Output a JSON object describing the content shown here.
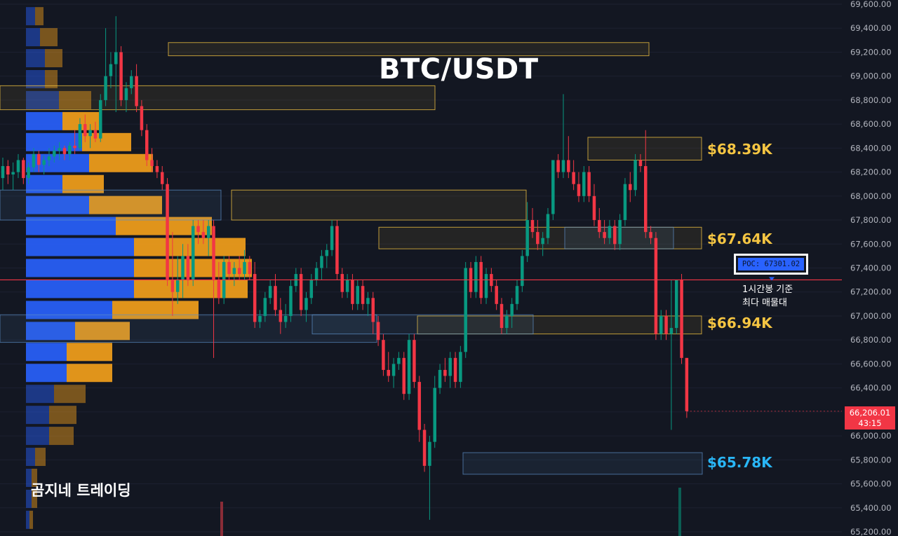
{
  "chart_data": {
    "type": "candlestick",
    "title": "BTC/USDT",
    "watermark": "곰지네 트레이딩",
    "ylim": [
      65200,
      69600
    ],
    "y_ticks": [
      "69,600.00",
      "69,400.00",
      "69,200.00",
      "69,000.00",
      "68,800.00",
      "68,600.00",
      "68,400.00",
      "68,200.00",
      "68,000.00",
      "67,800.00",
      "67,600.00",
      "67,400.00",
      "67,200.00",
      "67,000.00",
      "66,800.00",
      "66,600.00",
      "66,400.00",
      "66,200.00",
      "66,000.00",
      "65,800.00",
      "65,600.00",
      "65,400.00",
      "65,200.00"
    ],
    "levels": [
      {
        "label": "$68.39K",
        "value": 68390,
        "color": "#f5c542"
      },
      {
        "label": "$67.64K",
        "value": 67640,
        "color": "#f5c542"
      },
      {
        "label": "$66.94K",
        "value": 66940,
        "color": "#f5c542"
      },
      {
        "label": "$65.78K",
        "value": 65780,
        "color": "#29b6f6"
      }
    ],
    "poc": {
      "label": "POC: 67301.02",
      "value": 67301.02,
      "note_line1": "1시간봉 기준",
      "note_line2": "최다 매물대"
    },
    "last_price": {
      "label": "66,206.01",
      "value": 66206.01,
      "countdown": "43:15"
    },
    "colors": {
      "up": "#089981",
      "down": "#f23645",
      "profile_buy": "#2962ff",
      "profile_sell": "#f7a21b",
      "poc_line": "#f23645",
      "zone_yellow": "#f5c542",
      "zone_blue": "#5d8fc7"
    },
    "volume_profile": [
      {
        "price": 69500,
        "buy": 0.13,
        "sell": 0.12
      },
      {
        "price": 69325,
        "buy": 0.2,
        "sell": 0.25
      },
      {
        "price": 69150,
        "buy": 0.27,
        "sell": 0.25
      },
      {
        "price": 68975,
        "buy": 0.27,
        "sell": 0.18
      },
      {
        "price": 68800,
        "buy": 0.47,
        "sell": 0.46
      },
      {
        "price": 68625,
        "buy": 0.52,
        "sell": 0.53
      },
      {
        "price": 68450,
        "buy": 0.8,
        "sell": 0.7
      },
      {
        "price": 68275,
        "buy": 0.9,
        "sell": 0.91
      },
      {
        "price": 68100,
        "buy": 0.52,
        "sell": 0.59
      },
      {
        "price": 67925,
        "buy": 0.9,
        "sell": 1.04
      },
      {
        "price": 67750,
        "buy": 1.28,
        "sell": 1.37
      },
      {
        "price": 67575,
        "buy": 1.54,
        "sell": 1.59
      },
      {
        "price": 67400,
        "buy": 1.54,
        "sell": 1.68
      },
      {
        "price": 67225,
        "buy": 1.54,
        "sell": 1.62
      },
      {
        "price": 67050,
        "buy": 1.23,
        "sell": 1.23
      },
      {
        "price": 66875,
        "buy": 0.7,
        "sell": 0.78
      },
      {
        "price": 66700,
        "buy": 0.58,
        "sell": 0.65
      },
      {
        "price": 66525,
        "buy": 0.58,
        "sell": 0.65
      },
      {
        "price": 66350,
        "buy": 0.4,
        "sell": 0.45
      },
      {
        "price": 66175,
        "buy": 0.33,
        "sell": 0.39
      },
      {
        "price": 66000,
        "buy": 0.33,
        "sell": 0.35
      },
      {
        "price": 65825,
        "buy": 0.13,
        "sell": 0.15
      },
      {
        "price": 65650,
        "buy": 0.08,
        "sell": 0.08
      },
      {
        "price": 65475,
        "buy": 0.08,
        "sell": 0.08
      },
      {
        "price": 65300,
        "buy": 0.05,
        "sell": 0.05
      }
    ],
    "zones": [
      {
        "low": 69170,
        "high": 69280,
        "color": "yellow"
      },
      {
        "low": 68720,
        "high": 68920,
        "color": "yellow"
      },
      {
        "low": 67800,
        "high": 68050,
        "color": "yellow"
      },
      {
        "low": 67800,
        "high": 68050,
        "color": "blue"
      },
      {
        "low": 67560,
        "high": 67740,
        "color": "yellow"
      },
      {
        "low": 67560,
        "high": 67740,
        "color": "blue"
      },
      {
        "low": 66850,
        "high": 67000,
        "color": "yellow"
      },
      {
        "low": 66780,
        "high": 67010,
        "color": "blue"
      },
      {
        "low": 66850,
        "high": 67010,
        "color": "blue"
      },
      {
        "low": 68300,
        "high": 68490,
        "color": "yellow"
      },
      {
        "low": 65680,
        "high": 65860,
        "color": "blue"
      }
    ],
    "candles": [
      {
        "o": 68150,
        "h": 68320,
        "l": 68050,
        "c": 68250
      },
      {
        "o": 68250,
        "h": 68300,
        "l": 68100,
        "c": 68180
      },
      {
        "o": 68180,
        "h": 68280,
        "l": 68050,
        "c": 68200
      },
      {
        "o": 68200,
        "h": 68350,
        "l": 68150,
        "c": 68300
      },
      {
        "o": 68300,
        "h": 68320,
        "l": 68100,
        "c": 68150
      },
      {
        "o": 68150,
        "h": 68280,
        "l": 68100,
        "c": 68240
      },
      {
        "o": 68240,
        "h": 68400,
        "l": 68200,
        "c": 68350
      },
      {
        "o": 68350,
        "h": 68380,
        "l": 68200,
        "c": 68260
      },
      {
        "o": 68260,
        "h": 68340,
        "l": 68180,
        "c": 68300
      },
      {
        "o": 68300,
        "h": 68400,
        "l": 68250,
        "c": 68330
      },
      {
        "o": 68330,
        "h": 68420,
        "l": 68280,
        "c": 68380
      },
      {
        "o": 68380,
        "h": 68450,
        "l": 68300,
        "c": 68400
      },
      {
        "o": 68400,
        "h": 68420,
        "l": 68300,
        "c": 68350
      },
      {
        "o": 68350,
        "h": 68450,
        "l": 68300,
        "c": 68420
      },
      {
        "o": 68420,
        "h": 68550,
        "l": 68350,
        "c": 68400
      },
      {
        "o": 68400,
        "h": 68650,
        "l": 68380,
        "c": 68600
      },
      {
        "o": 68600,
        "h": 68680,
        "l": 68450,
        "c": 68500
      },
      {
        "o": 68500,
        "h": 68600,
        "l": 68400,
        "c": 68550
      },
      {
        "o": 68550,
        "h": 68620,
        "l": 68450,
        "c": 68480
      },
      {
        "o": 68480,
        "h": 68850,
        "l": 68450,
        "c": 68800
      },
      {
        "o": 68800,
        "h": 69400,
        "l": 68750,
        "c": 69000
      },
      {
        "o": 69000,
        "h": 69200,
        "l": 68900,
        "c": 69100
      },
      {
        "o": 69100,
        "h": 69500,
        "l": 68700,
        "c": 69200
      },
      {
        "o": 69200,
        "h": 69250,
        "l": 68750,
        "c": 68800
      },
      {
        "o": 68800,
        "h": 68950,
        "l": 68700,
        "c": 68900
      },
      {
        "o": 68900,
        "h": 69050,
        "l": 68850,
        "c": 69000
      },
      {
        "o": 69000,
        "h": 69100,
        "l": 68700,
        "c": 68750
      },
      {
        "o": 68750,
        "h": 68800,
        "l": 68500,
        "c": 68550
      },
      {
        "o": 68550,
        "h": 68600,
        "l": 68250,
        "c": 68300
      },
      {
        "o": 68300,
        "h": 68400,
        "l": 68200,
        "c": 68250
      },
      {
        "o": 68250,
        "h": 68300,
        "l": 68150,
        "c": 68200
      },
      {
        "o": 68200,
        "h": 68250,
        "l": 68050,
        "c": 68100
      },
      {
        "o": 68100,
        "h": 68150,
        "l": 67250,
        "c": 67300
      },
      {
        "o": 67300,
        "h": 67700,
        "l": 67000,
        "c": 67200
      },
      {
        "o": 67200,
        "h": 67500,
        "l": 67100,
        "c": 67300
      },
      {
        "o": 67300,
        "h": 67600,
        "l": 67150,
        "c": 67500
      },
      {
        "o": 67500,
        "h": 67600,
        "l": 67250,
        "c": 67300
      },
      {
        "o": 67300,
        "h": 67800,
        "l": 67250,
        "c": 67750
      },
      {
        "o": 67750,
        "h": 67800,
        "l": 67600,
        "c": 67700
      },
      {
        "o": 67700,
        "h": 67800,
        "l": 67600,
        "c": 67650
      },
      {
        "o": 67650,
        "h": 67800,
        "l": 67500,
        "c": 67750
      },
      {
        "o": 67750,
        "h": 67800,
        "l": 66650,
        "c": 67300
      },
      {
        "o": 67300,
        "h": 67450,
        "l": 67100,
        "c": 67150
      },
      {
        "o": 67150,
        "h": 67500,
        "l": 67100,
        "c": 67450
      },
      {
        "o": 67450,
        "h": 67500,
        "l": 67300,
        "c": 67350
      },
      {
        "o": 67350,
        "h": 67450,
        "l": 67250,
        "c": 67400
      },
      {
        "o": 67400,
        "h": 67500,
        "l": 67300,
        "c": 67350
      },
      {
        "o": 67350,
        "h": 67550,
        "l": 67300,
        "c": 67450
      },
      {
        "o": 67450,
        "h": 67500,
        "l": 67300,
        "c": 67350
      },
      {
        "o": 67350,
        "h": 67450,
        "l": 66900,
        "c": 66950
      },
      {
        "o": 66950,
        "h": 67050,
        "l": 66900,
        "c": 67000
      },
      {
        "o": 67000,
        "h": 67200,
        "l": 66950,
        "c": 67150
      },
      {
        "o": 67150,
        "h": 67300,
        "l": 67100,
        "c": 67250
      },
      {
        "o": 67250,
        "h": 67350,
        "l": 67000,
        "c": 67050
      },
      {
        "o": 67050,
        "h": 67150,
        "l": 66850,
        "c": 66950
      },
      {
        "o": 66950,
        "h": 67100,
        "l": 66900,
        "c": 67000
      },
      {
        "o": 67000,
        "h": 67300,
        "l": 66950,
        "c": 67250
      },
      {
        "o": 67250,
        "h": 67400,
        "l": 67200,
        "c": 67350
      },
      {
        "o": 67350,
        "h": 67400,
        "l": 67000,
        "c": 67050
      },
      {
        "o": 67050,
        "h": 67200,
        "l": 66950,
        "c": 67150
      },
      {
        "o": 67150,
        "h": 67350,
        "l": 67100,
        "c": 67300
      },
      {
        "o": 67300,
        "h": 67450,
        "l": 67250,
        "c": 67400
      },
      {
        "o": 67400,
        "h": 67550,
        "l": 67300,
        "c": 67500
      },
      {
        "o": 67500,
        "h": 67600,
        "l": 67400,
        "c": 67550
      },
      {
        "o": 67550,
        "h": 67800,
        "l": 67500,
        "c": 67750
      },
      {
        "o": 67750,
        "h": 67800,
        "l": 67300,
        "c": 67350
      },
      {
        "o": 67350,
        "h": 67400,
        "l": 67150,
        "c": 67200
      },
      {
        "o": 67200,
        "h": 67350,
        "l": 67150,
        "c": 67300
      },
      {
        "o": 67300,
        "h": 67350,
        "l": 67050,
        "c": 67100
      },
      {
        "o": 67100,
        "h": 67300,
        "l": 67050,
        "c": 67250
      },
      {
        "o": 67250,
        "h": 67300,
        "l": 67050,
        "c": 67100
      },
      {
        "o": 67100,
        "h": 67200,
        "l": 67000,
        "c": 67150
      },
      {
        "o": 67150,
        "h": 67200,
        "l": 66850,
        "c": 66950
      },
      {
        "o": 66950,
        "h": 67000,
        "l": 66750,
        "c": 66800
      },
      {
        "o": 66800,
        "h": 66850,
        "l": 66500,
        "c": 66550
      },
      {
        "o": 66550,
        "h": 66700,
        "l": 66450,
        "c": 66500
      },
      {
        "o": 66500,
        "h": 66650,
        "l": 66400,
        "c": 66600
      },
      {
        "o": 66600,
        "h": 66700,
        "l": 66550,
        "c": 66650
      },
      {
        "o": 66650,
        "h": 66700,
        "l": 66300,
        "c": 66350
      },
      {
        "o": 66350,
        "h": 66850,
        "l": 66300,
        "c": 66800
      },
      {
        "o": 66800,
        "h": 66850,
        "l": 66400,
        "c": 66450
      },
      {
        "o": 66450,
        "h": 66500,
        "l": 65950,
        "c": 66050
      },
      {
        "o": 66050,
        "h": 66100,
        "l": 65700,
        "c": 65750
      },
      {
        "o": 65750,
        "h": 66000,
        "l": 65300,
        "c": 65950
      },
      {
        "o": 65950,
        "h": 66500,
        "l": 65900,
        "c": 66400
      },
      {
        "o": 66400,
        "h": 66600,
        "l": 66350,
        "c": 66550
      },
      {
        "o": 66550,
        "h": 66650,
        "l": 66450,
        "c": 66500
      },
      {
        "o": 66500,
        "h": 66700,
        "l": 66400,
        "c": 66650
      },
      {
        "o": 66650,
        "h": 66700,
        "l": 66400,
        "c": 66450
      },
      {
        "o": 66450,
        "h": 66750,
        "l": 66400,
        "c": 66700
      },
      {
        "o": 66700,
        "h": 67450,
        "l": 66650,
        "c": 67400
      },
      {
        "o": 67400,
        "h": 67450,
        "l": 67150,
        "c": 67200
      },
      {
        "o": 67200,
        "h": 67500,
        "l": 67150,
        "c": 67450
      },
      {
        "o": 67450,
        "h": 67500,
        "l": 67100,
        "c": 67150
      },
      {
        "o": 67150,
        "h": 67400,
        "l": 67100,
        "c": 67350
      },
      {
        "o": 67350,
        "h": 67400,
        "l": 67200,
        "c": 67250
      },
      {
        "o": 67250,
        "h": 67300,
        "l": 67050,
        "c": 67100
      },
      {
        "o": 67100,
        "h": 67150,
        "l": 66850,
        "c": 66900
      },
      {
        "o": 66900,
        "h": 67050,
        "l": 66850,
        "c": 67000
      },
      {
        "o": 67000,
        "h": 67150,
        "l": 66900,
        "c": 67100
      },
      {
        "o": 67100,
        "h": 67300,
        "l": 67050,
        "c": 67250
      },
      {
        "o": 67250,
        "h": 67550,
        "l": 67200,
        "c": 67500
      },
      {
        "o": 67500,
        "h": 67950,
        "l": 67450,
        "c": 67800
      },
      {
        "o": 67800,
        "h": 67900,
        "l": 67650,
        "c": 67700
      },
      {
        "o": 67700,
        "h": 67800,
        "l": 67550,
        "c": 67600
      },
      {
        "o": 67600,
        "h": 67700,
        "l": 67500,
        "c": 67650
      },
      {
        "o": 67650,
        "h": 67900,
        "l": 67600,
        "c": 67850
      },
      {
        "o": 67850,
        "h": 68300,
        "l": 67800,
        "c": 68300
      },
      {
        "o": 68300,
        "h": 68350,
        "l": 68150,
        "c": 68200
      },
      {
        "o": 68200,
        "h": 68850,
        "l": 68150,
        "c": 68300
      },
      {
        "o": 68300,
        "h": 68500,
        "l": 68150,
        "c": 68200
      },
      {
        "o": 68200,
        "h": 68300,
        "l": 68050,
        "c": 68100
      },
      {
        "o": 68100,
        "h": 68200,
        "l": 67950,
        "c": 68000
      },
      {
        "o": 68000,
        "h": 68250,
        "l": 67950,
        "c": 68200
      },
      {
        "o": 68200,
        "h": 68250,
        "l": 67950,
        "c": 68000
      },
      {
        "o": 68000,
        "h": 68100,
        "l": 67750,
        "c": 67800
      },
      {
        "o": 67800,
        "h": 67900,
        "l": 67650,
        "c": 67700
      },
      {
        "o": 67700,
        "h": 67800,
        "l": 67600,
        "c": 67650
      },
      {
        "o": 67650,
        "h": 67800,
        "l": 67600,
        "c": 67750
      },
      {
        "o": 67750,
        "h": 67800,
        "l": 67550,
        "c": 67600
      },
      {
        "o": 67600,
        "h": 67850,
        "l": 67550,
        "c": 67800
      },
      {
        "o": 67800,
        "h": 68150,
        "l": 67750,
        "c": 68100
      },
      {
        "o": 68100,
        "h": 68200,
        "l": 67950,
        "c": 68050
      },
      {
        "o": 68050,
        "h": 68350,
        "l": 68000,
        "c": 68300
      },
      {
        "o": 68300,
        "h": 68350,
        "l": 68200,
        "c": 68250
      },
      {
        "o": 68250,
        "h": 68550,
        "l": 67650,
        "c": 67700
      },
      {
        "o": 67700,
        "h": 67750,
        "l": 67600,
        "c": 67650
      },
      {
        "o": 67650,
        "h": 67700,
        "l": 66800,
        "c": 66850
      },
      {
        "o": 66850,
        "h": 67050,
        "l": 66800,
        "c": 67000
      },
      {
        "o": 67000,
        "h": 67050,
        "l": 66800,
        "c": 66850
      },
      {
        "o": 66850,
        "h": 67300,
        "l": 66050,
        "c": 66900
      },
      {
        "o": 66900,
        "h": 67300,
        "l": 66850,
        "c": 67300
      },
      {
        "o": 67300,
        "h": 67350,
        "l": 66600,
        "c": 66650
      },
      {
        "o": 66650,
        "h": 66650,
        "l": 66150,
        "c": 66206.01
      }
    ]
  }
}
